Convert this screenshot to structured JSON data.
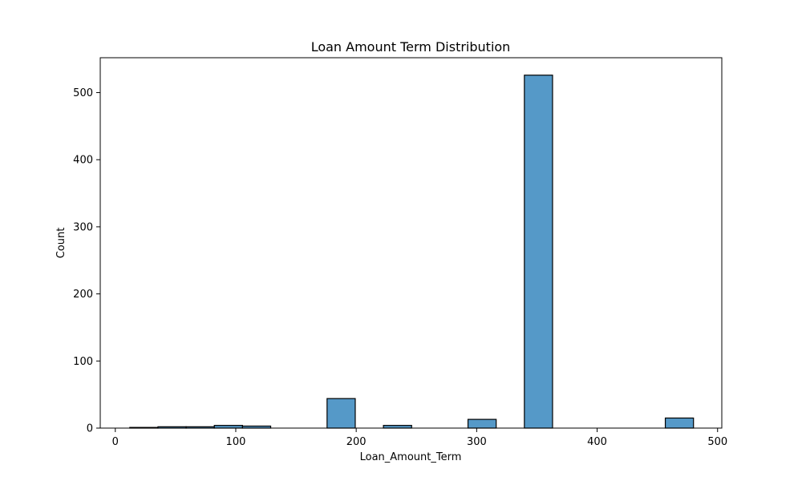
{
  "chart_data": {
    "type": "bar",
    "title": "Loan Amount Term Distribution",
    "xlabel": "Loan_Amount_Term",
    "ylabel": "Count",
    "xlim": [
      -12.5,
      503.5
    ],
    "ylim": [
      0,
      552
    ],
    "xticks": [
      0,
      100,
      200,
      300,
      400,
      500
    ],
    "yticks": [
      0,
      100,
      200,
      300,
      400,
      500
    ],
    "grid": false,
    "bins": [
      {
        "x0": 12.0,
        "x1": 35.4,
        "count": 1
      },
      {
        "x0": 35.4,
        "x1": 58.8,
        "count": 2
      },
      {
        "x0": 58.8,
        "x1": 82.2,
        "count": 2
      },
      {
        "x0": 82.2,
        "x1": 105.6,
        "count": 4
      },
      {
        "x0": 105.6,
        "x1": 129.0,
        "count": 3
      },
      {
        "x0": 129.0,
        "x1": 152.4,
        "count": 0
      },
      {
        "x0": 152.4,
        "x1": 175.8,
        "count": 0
      },
      {
        "x0": 175.8,
        "x1": 199.2,
        "count": 44
      },
      {
        "x0": 199.2,
        "x1": 222.6,
        "count": 0
      },
      {
        "x0": 222.6,
        "x1": 246.0,
        "count": 4
      },
      {
        "x0": 246.0,
        "x1": 269.4,
        "count": 0
      },
      {
        "x0": 269.4,
        "x1": 292.8,
        "count": 0
      },
      {
        "x0": 292.8,
        "x1": 316.2,
        "count": 13
      },
      {
        "x0": 316.2,
        "x1": 339.6,
        "count": 0
      },
      {
        "x0": 339.6,
        "x1": 363.0,
        "count": 526
      },
      {
        "x0": 363.0,
        "x1": 386.4,
        "count": 0
      },
      {
        "x0": 386.4,
        "x1": 409.8,
        "count": 0
      },
      {
        "x0": 409.8,
        "x1": 433.2,
        "count": 0
      },
      {
        "x0": 433.2,
        "x1": 456.6,
        "count": 0
      },
      {
        "x0": 456.6,
        "x1": 480.0,
        "count": 15
      }
    ],
    "bar_color": "#5599c8",
    "edge_color": "#000000"
  }
}
